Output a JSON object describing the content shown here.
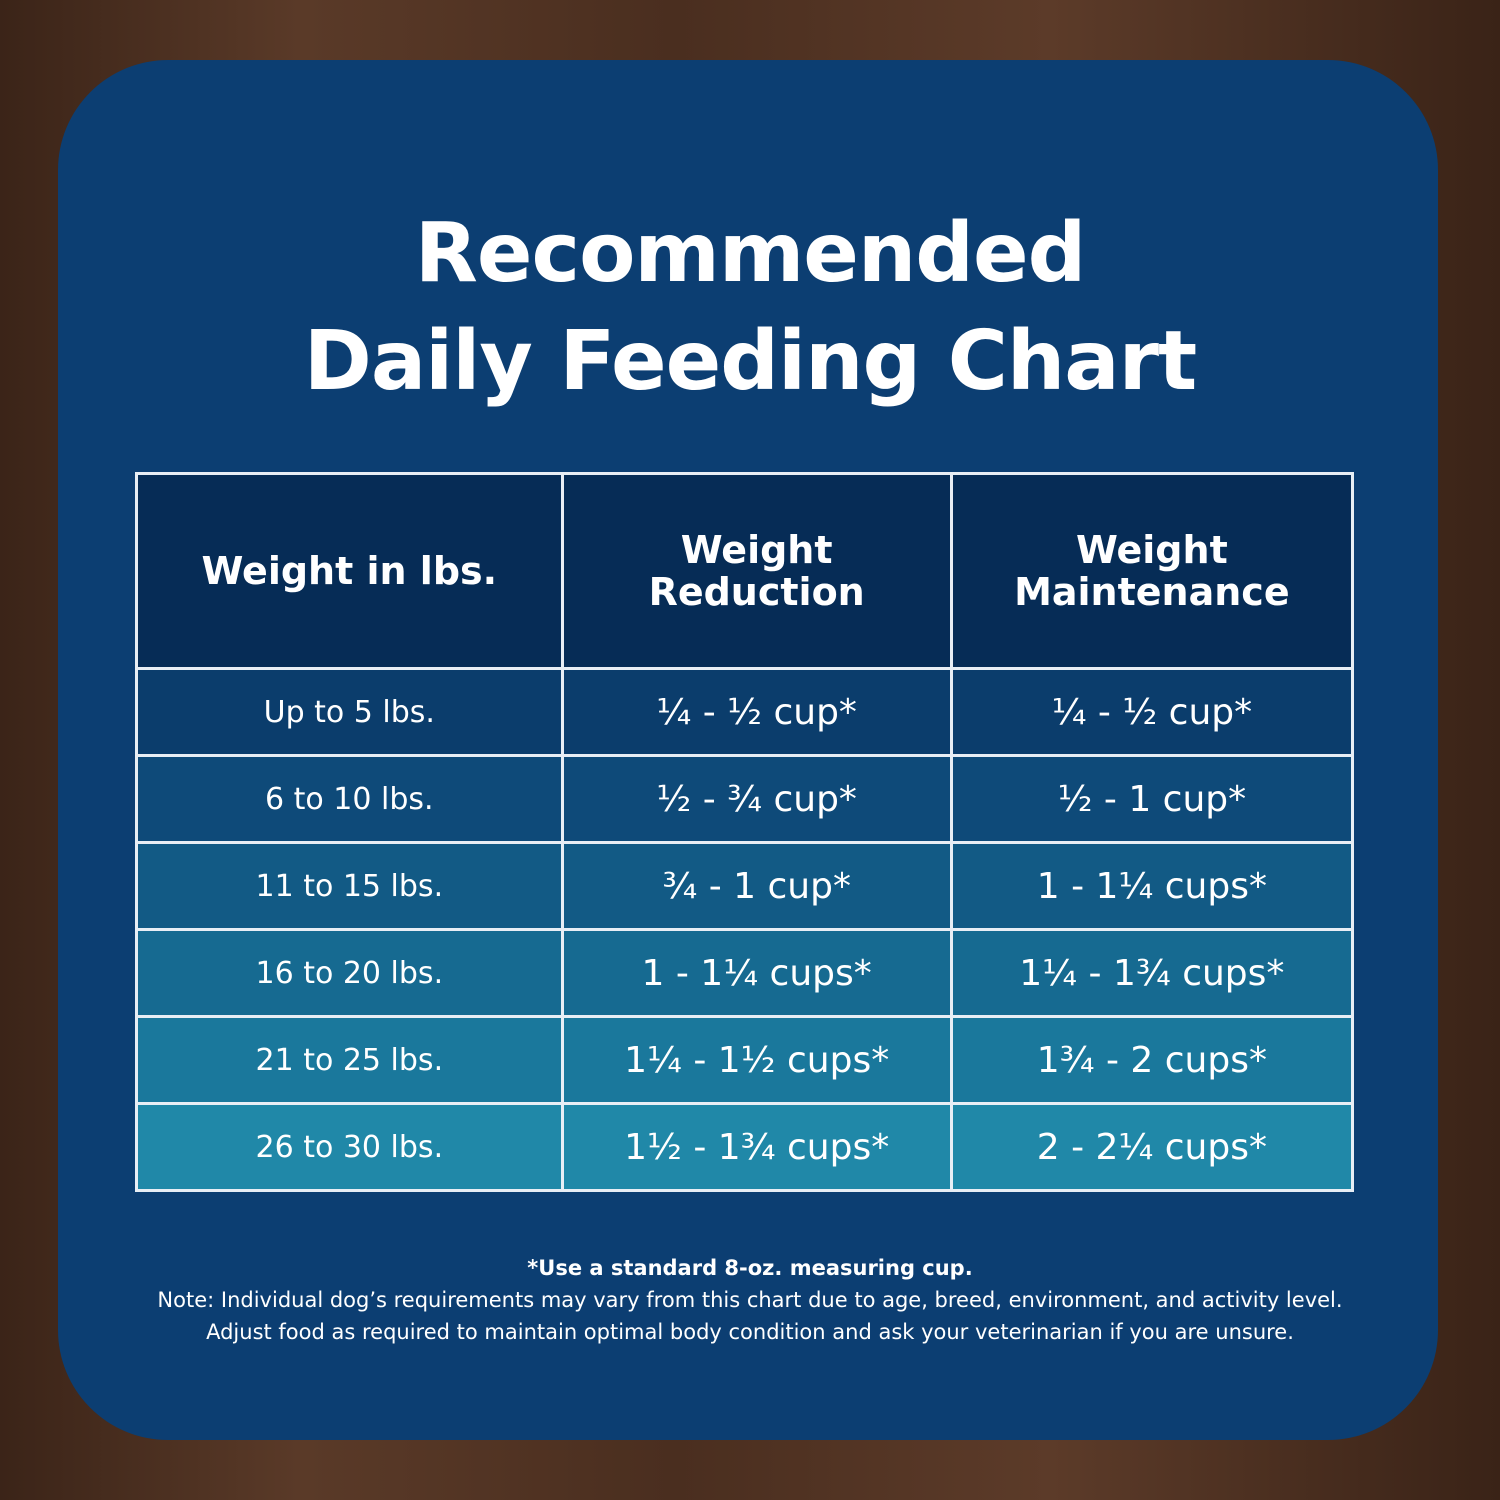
{
  "title": [
    "Recommended",
    "Daily Feeding Chart"
  ],
  "table": {
    "header": [
      "Weight in lbs.",
      "Weight Reduction",
      "Weight Maintenance"
    ],
    "rows": [
      [
        "Up to 5 lbs.",
        "¼ - ½ cup*",
        "¼ - ½ cup*"
      ],
      [
        "6 to 10 lbs.",
        "½ - ¾ cup*",
        "½ - 1 cup*"
      ],
      [
        "11 to 15 lbs.",
        "¾ - 1 cup*",
        "1 - 1¼ cups*"
      ],
      [
        "16 to 20 lbs.",
        "1 - 1¼ cups*",
        "1¼ - 1¾ cups*"
      ],
      [
        "21 to 25 lbs.",
        "1¼ - 1½ cups*",
        "1¾ - 2 cups*"
      ],
      [
        "26 to 30 lbs.",
        "1½ - 1¾ cups*",
        "2 - 2¼ cups*"
      ]
    ]
  },
  "footnote": "*Use a standard 8-oz. measuring cup.",
  "notes": [
    "Note: Individual dog’s requirements may vary from this chart due to age, breed, environment, and activity level.",
    "Adjust food as required to maintain optimal body condition and ask your veterinarian if you are unsure."
  ]
}
